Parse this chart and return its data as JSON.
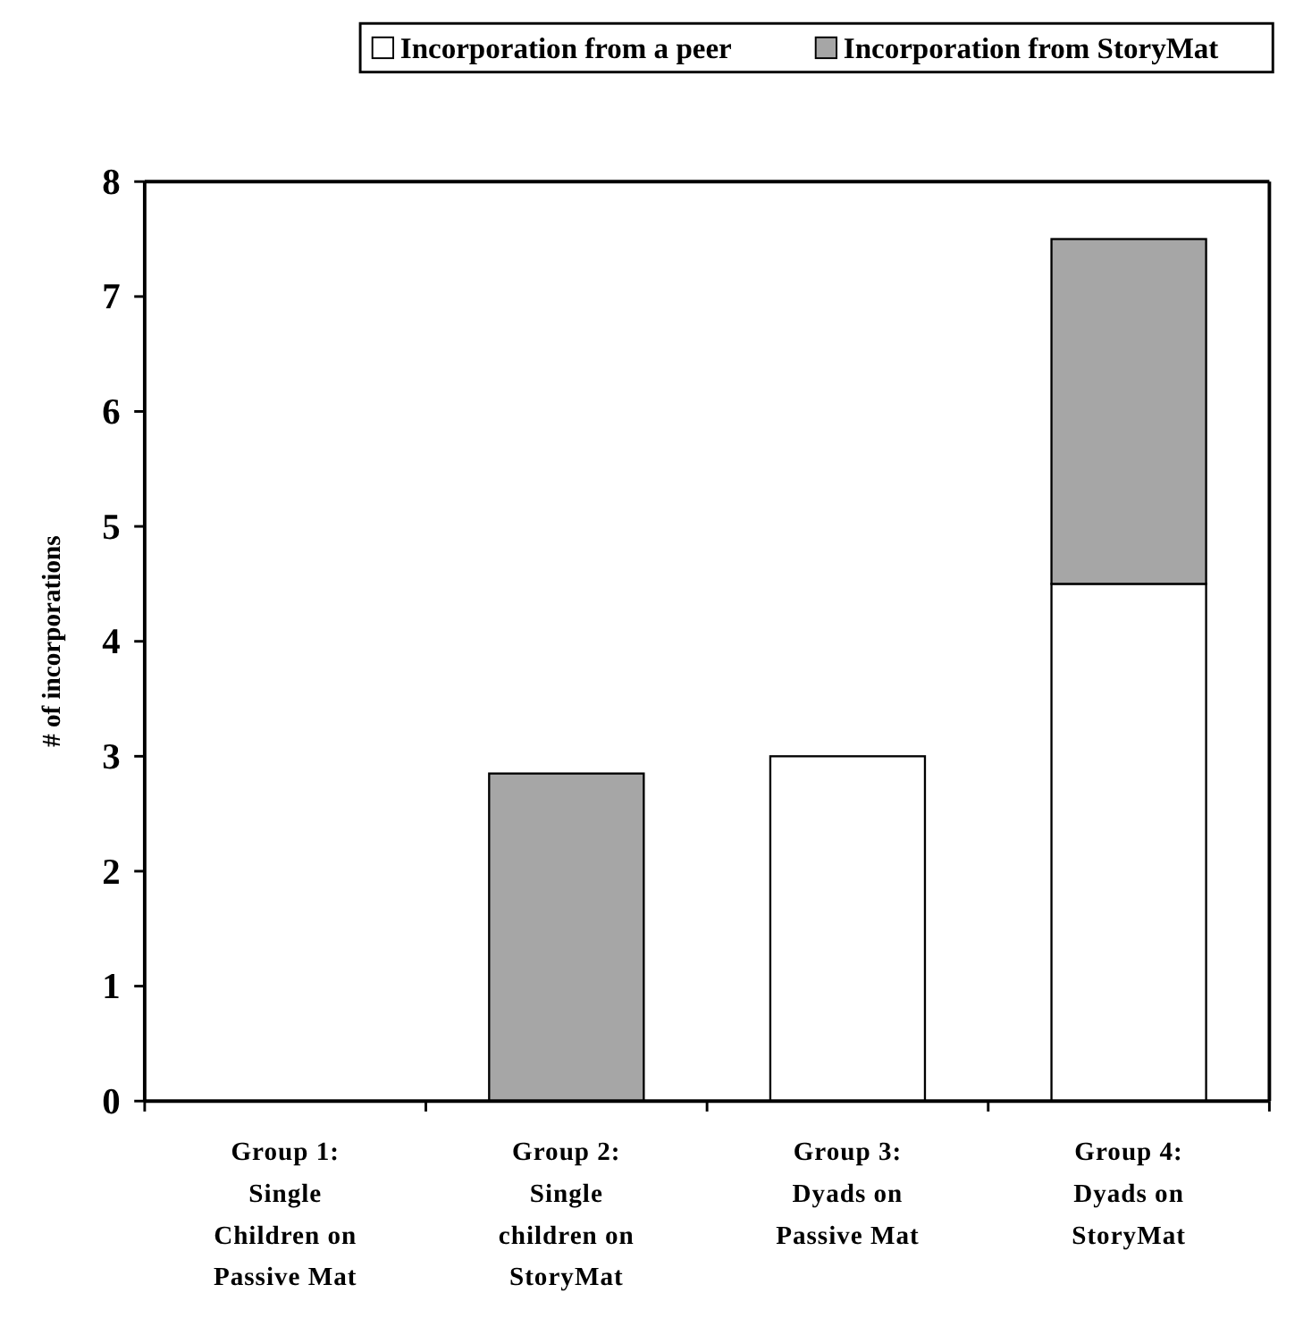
{
  "chart_data": {
    "type": "bar",
    "stacked": true,
    "ylabel": "# of incorporations",
    "categories": [
      "Group 1: Single Children on Passive Mat",
      "Group 2: Single children on StoryMat",
      "Group 3: Dyads on Passive Mat",
      "Group 4: Dyads on StoryMat"
    ],
    "series": [
      {
        "name": "Incorporation from a peer",
        "color": "#ffffff",
        "values": [
          0,
          0,
          3,
          4.5
        ]
      },
      {
        "name": "Incorporation from StoryMat",
        "color": "#a6a6a6",
        "values": [
          0,
          2.85,
          0,
          3
        ]
      }
    ],
    "ylim": [
      0,
      8
    ],
    "yticks": [
      0,
      1,
      2,
      3,
      4,
      5,
      6,
      7,
      8
    ],
    "grid": false,
    "legend": "top"
  }
}
